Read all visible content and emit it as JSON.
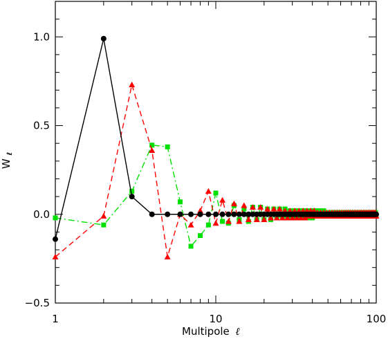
{
  "chart_data": {
    "type": "line",
    "title": "",
    "xlabel": "Multipole",
    "xlabel_symbol": "ℓ",
    "ylabel": "W",
    "ylabel_subscript": "ℓ",
    "x_scale": "log",
    "xlim": [
      1,
      100
    ],
    "ylim": [
      -0.5,
      1.2
    ],
    "x_tick_labels": [
      "1",
      "10",
      "100"
    ],
    "y_tick_labels": [
      "1.0",
      "0.5",
      "0.0",
      "−0.5"
    ],
    "y_tick_values": [
      1.0,
      0.5,
      0.0,
      -0.5
    ],
    "grid": false,
    "legend": "none",
    "series": [
      {
        "color": "#000000",
        "line_style": "solid",
        "marker": "circle",
        "x": [
          1,
          2,
          3,
          4,
          5,
          6,
          7,
          8,
          9,
          10,
          11,
          12,
          13,
          14,
          15,
          16,
          17,
          18,
          19,
          20,
          21,
          22,
          23,
          24,
          25,
          26,
          27,
          28,
          29,
          30,
          31,
          32,
          33,
          34,
          35,
          36,
          37,
          38,
          39,
          40,
          41,
          42,
          43,
          44,
          45,
          46,
          47,
          48,
          49,
          50,
          51,
          52,
          53,
          54,
          55,
          56,
          57,
          58,
          59,
          60,
          61,
          62,
          63,
          64,
          65,
          66,
          67,
          68,
          69,
          70,
          71,
          72,
          73,
          74,
          75,
          76,
          77,
          78,
          79,
          80,
          81,
          82,
          83,
          84,
          85,
          86,
          87,
          88,
          89,
          90,
          91,
          92,
          93,
          94,
          95,
          96,
          97,
          98,
          99,
          100
        ],
        "y": [
          -0.14,
          0.99,
          0.1,
          0.0,
          0.0,
          0.0,
          0.0,
          0.0,
          0.0,
          0.0,
          0.0,
          0.0,
          0.0,
          0.0,
          0.0,
          0.0,
          0.0,
          0.0,
          0.0,
          0.0,
          0.0,
          0.0,
          0.0,
          0.0,
          0.0,
          0.0,
          0.0,
          0.0,
          0.0,
          0.0,
          0.0,
          0.0,
          0.0,
          0.0,
          0.0,
          0.0,
          0.0,
          0.0,
          0.0,
          0.0,
          0.0,
          0.0,
          0.0,
          0.0,
          0.0,
          0.0,
          0.0,
          0.0,
          0.0,
          0.0,
          0.0,
          0.0,
          0.0,
          0.0,
          0.0,
          0.0,
          0.0,
          0.0,
          0.0,
          0.0,
          0.0,
          0.0,
          0.0,
          0.0,
          0.0,
          0.0,
          0.0,
          0.0,
          0.0,
          0.0,
          0.0,
          0.0,
          0.0,
          0.0,
          0.0,
          0.0,
          0.0,
          0.0,
          0.0,
          0.0,
          0.0,
          0.0,
          0.0,
          0.0,
          0.0,
          0.0,
          0.0,
          0.0,
          0.0,
          0.0,
          0.0,
          0.0,
          0.0,
          0.0,
          0.0,
          0.0,
          0.0,
          0.0,
          0.0,
          0.0
        ]
      },
      {
        "color": "#ff0000",
        "line_style": "dashed",
        "marker": "triangle",
        "x": [
          1,
          2,
          3,
          4,
          5,
          6,
          7,
          8,
          9,
          10,
          11,
          12,
          13,
          14,
          15,
          16,
          17,
          18,
          19,
          20,
          21,
          22,
          23,
          24,
          25,
          26,
          27,
          28,
          29,
          30,
          31,
          32,
          33,
          34,
          35,
          36,
          37,
          38,
          39,
          40,
          41,
          42,
          43,
          44,
          45,
          46,
          47,
          48,
          49,
          50,
          51,
          52,
          53,
          54,
          55,
          56,
          57,
          58,
          59,
          60,
          61,
          62,
          63,
          64,
          65,
          66,
          67,
          68,
          69,
          70,
          71,
          72,
          73,
          74,
          75,
          76,
          77,
          78,
          79,
          80,
          81,
          82,
          83,
          84,
          85,
          86,
          87,
          88,
          89,
          90,
          91,
          92,
          93,
          94,
          95,
          96,
          97,
          98,
          99,
          100
        ],
        "y": [
          -0.24,
          -0.01,
          0.73,
          0.36,
          -0.24,
          0.0,
          -0.06,
          0.02,
          0.13,
          -0.05,
          0.08,
          -0.04,
          0.06,
          -0.04,
          0.05,
          -0.03,
          0.04,
          -0.03,
          0.04,
          -0.03,
          0.03,
          -0.02,
          0.03,
          -0.02,
          0.03,
          -0.02,
          0.02,
          -0.02,
          0.02,
          -0.02,
          0.02,
          -0.02,
          0.02,
          -0.02,
          0.02,
          -0.02,
          0.02,
          -0.01,
          0.02,
          -0.01,
          0.02,
          -0.01,
          0.01,
          -0.01,
          0.01,
          -0.01,
          0.01,
          -0.01,
          0.01,
          -0.01,
          0.01,
          -0.01,
          0.01,
          -0.01,
          0.01,
          -0.01,
          0.01,
          -0.01,
          0.01,
          -0.01,
          0.01,
          -0.01,
          0.01,
          -0.01,
          0.01,
          -0.01,
          0.01,
          -0.01,
          0.01,
          -0.01,
          0.01,
          -0.01,
          0.01,
          -0.01,
          0.01,
          -0.01,
          0.01,
          -0.01,
          0.01,
          -0.01,
          0.01,
          -0.01,
          0.01,
          -0.01,
          0.01,
          -0.01,
          0.01,
          -0.01,
          0.01,
          -0.01,
          0.01,
          -0.01,
          0.01,
          -0.01,
          0.01,
          -0.01,
          0.01,
          -0.01,
          0.01,
          -0.01
        ]
      },
      {
        "color": "#00e000",
        "line_style": "dashdot",
        "marker": "square",
        "x": [
          1,
          2,
          3,
          4,
          5,
          6,
          7,
          8,
          9,
          10,
          11,
          12,
          13,
          14,
          15,
          16,
          17,
          18,
          19,
          20,
          21,
          22,
          23,
          24,
          25,
          26,
          27,
          28,
          29,
          30,
          31,
          32,
          33,
          34,
          35,
          36,
          37,
          38,
          39,
          40,
          41,
          42,
          43,
          44,
          45,
          46,
          47,
          48,
          49,
          50,
          51,
          52,
          53,
          54,
          55,
          56,
          57,
          58,
          59,
          60,
          61,
          62,
          63,
          64,
          65,
          66,
          67,
          68,
          69,
          70,
          71,
          72,
          73,
          74,
          75,
          76,
          77,
          78,
          79,
          80,
          81,
          82,
          83,
          84,
          85,
          86,
          87,
          88,
          89,
          90,
          91,
          92,
          93,
          94,
          95,
          96,
          97,
          98,
          99,
          100
        ],
        "y": [
          -0.02,
          -0.06,
          0.13,
          0.39,
          0.38,
          0.07,
          -0.18,
          -0.12,
          -0.06,
          0.12,
          -0.04,
          -0.05,
          0.05,
          -0.03,
          0.03,
          -0.04,
          0.04,
          -0.03,
          0.04,
          -0.03,
          0.03,
          -0.03,
          0.03,
          -0.02,
          0.03,
          -0.02,
          0.03,
          -0.02,
          0.02,
          -0.02,
          0.02,
          -0.02,
          0.02,
          -0.02,
          0.02,
          -0.02,
          0.02,
          -0.02,
          0.02,
          -0.02,
          0.02,
          -0.01,
          0.02,
          -0.01,
          0.02,
          -0.01,
          0.02,
          -0.01,
          0.01,
          -0.01,
          0.01,
          -0.01,
          0.01,
          -0.01,
          0.01,
          -0.01,
          0.01,
          -0.01,
          0.01,
          -0.01,
          0.01,
          -0.01,
          0.01,
          -0.01,
          0.01,
          -0.01,
          0.01,
          -0.01,
          0.01,
          -0.01,
          0.01,
          -0.01,
          0.01,
          -0.01,
          0.01,
          -0.01,
          0.01,
          -0.01,
          0.01,
          -0.01,
          0.01,
          -0.01,
          0.01,
          -0.01,
          0.01,
          -0.01,
          0.01,
          -0.01,
          0.01,
          -0.01,
          0.01,
          -0.01,
          0.01,
          -0.01,
          0.01,
          -0.01,
          0.01,
          -0.01,
          0.01,
          -0.01
        ]
      }
    ]
  }
}
